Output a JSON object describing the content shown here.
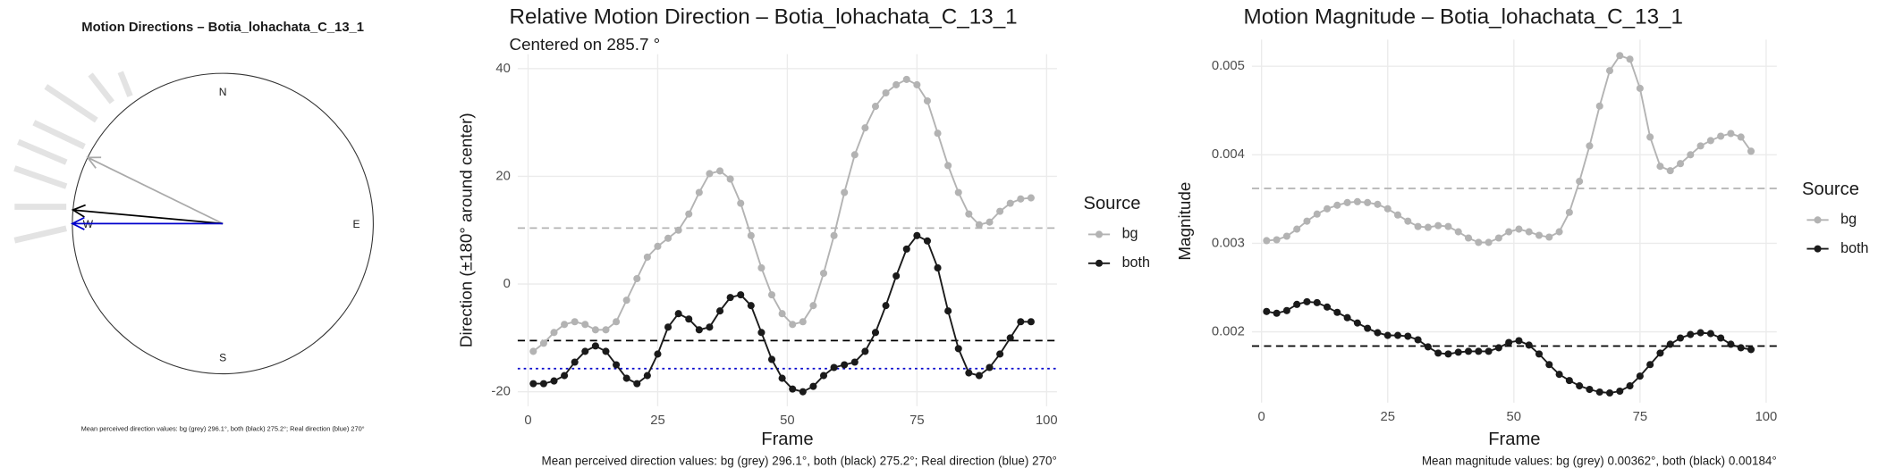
{
  "chart_data": [
    {
      "type": "compass",
      "title": "Motion Directions – Botia_lohachata_C_13_1",
      "labels": [
        "N",
        "E",
        "S",
        "W"
      ],
      "directions": [
        {
          "angle": 296.1,
          "color": "#aaaaaa"
        },
        {
          "angle": 275.2,
          "color": "#000000"
        },
        {
          "angle": 270,
          "color": "#0000cc"
        }
      ],
      "caption": "Mean perceived direction values: bg (grey) 296.1°, both (black) 275.2°; Real direction (blue) 270°"
    },
    {
      "type": "line",
      "title": "Relative Motion Direction – Botia_lohachata_C_13_1",
      "subtitle": "Centered on  285.7 °",
      "x_label": "Frame",
      "y_label": "Direction (±180° around center)",
      "caption": "Mean perceived direction values: bg (grey) 296.1°, both (black) 275.2°; Real direction (blue) 270°",
      "legend_title": "Source",
      "x": [
        1,
        3,
        5,
        7,
        9,
        11,
        13,
        15,
        17,
        19,
        21,
        23,
        25,
        27,
        29,
        31,
        33,
        35,
        37,
        39,
        41,
        43,
        45,
        47,
        49,
        51,
        53,
        55,
        57,
        59,
        61,
        63,
        65,
        67,
        69,
        71,
        73,
        75,
        77,
        79,
        81,
        83,
        85,
        87,
        89,
        91,
        93,
        95,
        97
      ],
      "series": [
        {
          "name": "bg",
          "color": "#b3b3b3",
          "values": [
            -12.5,
            -11,
            -9,
            -7.5,
            -7,
            -7.5,
            -8.5,
            -8.5,
            -7,
            -3,
            1,
            5,
            7,
            8.5,
            10,
            13,
            17,
            20.5,
            21,
            19.5,
            15,
            9,
            3,
            -2,
            -5.5,
            -7.5,
            -7,
            -4,
            2,
            9,
            17,
            24,
            29,
            33,
            35.5,
            37,
            38,
            37,
            34,
            28,
            22,
            17,
            13,
            11,
            11.5,
            13.5,
            15,
            15.8,
            16
          ]
        },
        {
          "name": "both",
          "color": "#1a1a1a",
          "values": [
            -18.5,
            -18.5,
            -18,
            -17,
            -14.5,
            -12.5,
            -11.5,
            -12.5,
            -15,
            -17.5,
            -18.5,
            -17,
            -13,
            -8,
            -5.5,
            -6.5,
            -8.5,
            -8,
            -5,
            -2.5,
            -2,
            -4,
            -9,
            -14,
            -17.5,
            -19.5,
            -20,
            -19,
            -17,
            -15.5,
            -15,
            -14.5,
            -12.5,
            -9,
            -4,
            1.5,
            6.5,
            9,
            8,
            3,
            -5,
            -12,
            -16.5,
            -17,
            -15.5,
            -13,
            -10,
            -7,
            -7
          ]
        }
      ],
      "hlines": [
        {
          "value": 10.4,
          "color": "#b3b3b3",
          "dash": "6,4"
        },
        {
          "value": -10.5,
          "color": "#000000",
          "dash": "6,4"
        },
        {
          "value": -15.7,
          "color": "#0000cc",
          "dash": "2,3"
        }
      ],
      "xlim": [
        -2,
        102
      ],
      "ylim": [
        -22.7,
        42.7
      ],
      "xticks": [
        0,
        25,
        50,
        75,
        100
      ],
      "yticks": [
        -20,
        0,
        20,
        40
      ],
      "grid": true
    },
    {
      "type": "line",
      "title": "Motion Magnitude – Botia_lohachata_C_13_1",
      "x_label": "Frame",
      "y_label": "Magnitude",
      "caption": "Mean magnitude values: bg (grey) 0.00362°, both (black) 0.00184°",
      "legend_title": "Source",
      "x": [
        1,
        3,
        5,
        7,
        9,
        11,
        13,
        15,
        17,
        19,
        21,
        23,
        25,
        27,
        29,
        31,
        33,
        35,
        37,
        39,
        41,
        43,
        45,
        47,
        49,
        51,
        53,
        55,
        57,
        59,
        61,
        63,
        65,
        67,
        69,
        71,
        73,
        75,
        77,
        79,
        81,
        83,
        85,
        87,
        89,
        91,
        93,
        95,
        97
      ],
      "series": [
        {
          "name": "bg",
          "color": "#b3b3b3",
          "values": [
            0.00303,
            0.00304,
            0.00308,
            0.00316,
            0.00325,
            0.00333,
            0.00339,
            0.00343,
            0.00346,
            0.00347,
            0.00346,
            0.00344,
            0.00339,
            0.00332,
            0.00325,
            0.00319,
            0.00318,
            0.0032,
            0.00319,
            0.00313,
            0.00306,
            0.00301,
            0.00301,
            0.00306,
            0.00313,
            0.00316,
            0.00313,
            0.00309,
            0.00307,
            0.00313,
            0.00335,
            0.0037,
            0.0041,
            0.00455,
            0.00495,
            0.00512,
            0.00508,
            0.00475,
            0.0042,
            0.00387,
            0.00382,
            0.0039,
            0.004,
            0.0041,
            0.00416,
            0.00421,
            0.00424,
            0.0042,
            0.00404
          ]
        },
        {
          "name": "both",
          "color": "#1a1a1a",
          "values": [
            0.00223,
            0.00221,
            0.00224,
            0.00231,
            0.00234,
            0.00233,
            0.00228,
            0.00222,
            0.00216,
            0.0021,
            0.00204,
            0.00199,
            0.00196,
            0.00196,
            0.00195,
            0.00191,
            0.00183,
            0.00176,
            0.00175,
            0.00177,
            0.00178,
            0.00178,
            0.00178,
            0.00182,
            0.00188,
            0.0019,
            0.00185,
            0.00175,
            0.00163,
            0.00152,
            0.00145,
            0.00139,
            0.00135,
            0.00132,
            0.00131,
            0.00133,
            0.00139,
            0.0015,
            0.00163,
            0.00176,
            0.00186,
            0.00193,
            0.00197,
            0.00199,
            0.00198,
            0.00193,
            0.00186,
            0.00182,
            0.0018
          ]
        }
      ],
      "hlines": [
        {
          "value": 0.00362,
          "color": "#b3b3b3",
          "dash": "6,4"
        },
        {
          "value": 0.00184,
          "color": "#000000",
          "dash": "6,4"
        }
      ],
      "xlim": [
        -1.9,
        102.1
      ],
      "ylim": [
        0.0012,
        0.0053
      ],
      "xticks": [
        0,
        25,
        50,
        75,
        100
      ],
      "yticks": [
        0.002,
        0.003,
        0.004,
        0.005
      ],
      "grid": true
    }
  ]
}
